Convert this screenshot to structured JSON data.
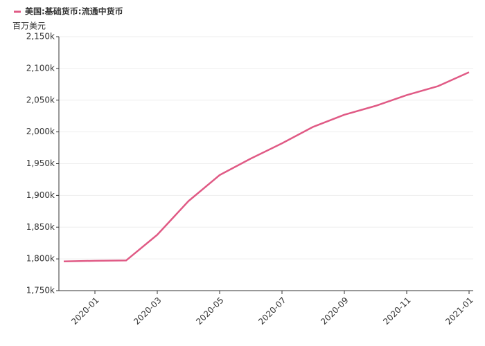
{
  "chart_data": {
    "type": "line",
    "legend_title": "美国:基础货币:流通中货币",
    "y_unit": "百万美元",
    "categories": [
      null,
      "2020-01",
      null,
      "2020-03",
      null,
      "2020-05",
      null,
      "2020-07",
      null,
      "2020-09",
      null,
      "2020-11",
      null,
      "2021-01"
    ],
    "series": [
      {
        "name": "美国:基础货币:流通中货币",
        "color": "#e05a85",
        "values": [
          1796000,
          1797000,
          1797500,
          1838000,
          1891000,
          1932000,
          1958000,
          1982000,
          2008000,
          2027000,
          2041000,
          2058000,
          2072000,
          2094000
        ]
      }
    ],
    "ylim": [
      1750000,
      2150000
    ],
    "yticks": [
      {
        "value": 1750000,
        "label": "1,750k"
      },
      {
        "value": 1800000,
        "label": "1,800k"
      },
      {
        "value": 1850000,
        "label": "1,850k"
      },
      {
        "value": 1900000,
        "label": "1,900k"
      },
      {
        "value": 1950000,
        "label": "1,950k"
      },
      {
        "value": 2000000,
        "label": "2,000k"
      },
      {
        "value": 2050000,
        "label": "2,050k"
      },
      {
        "value": 2100000,
        "label": "2,100k"
      },
      {
        "value": 2150000,
        "label": "2,150k"
      }
    ],
    "grid": true
  }
}
